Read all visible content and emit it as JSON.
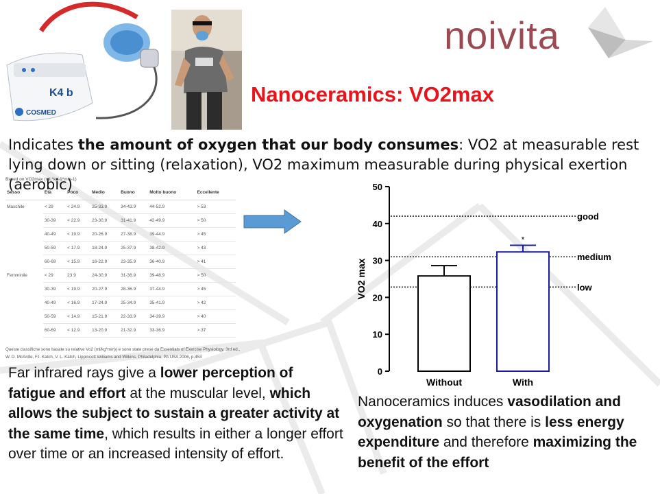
{
  "logo": {
    "text": "noivita"
  },
  "device_photo": {
    "brand_label": "K4 b",
    "maker_label": "COSMED"
  },
  "title": "Nanoceramics: VO2max",
  "intro": {
    "p1": "Indicates ",
    "b1": "the amount of oxygen that our body consumes",
    "p2": ": VO2 at measurable rest lying down or sitting (relaxation), VO2 maximum measurable during physical exertion (aerobic)"
  },
  "vo2_table": {
    "caption": "Based on VO2max (mL*kg-1*min-1)",
    "headers": [
      "Sesso",
      "Età",
      "Poco",
      "Medio",
      "Buono",
      "Molto buono",
      "Eccellente"
    ],
    "rows": [
      [
        "Maschile",
        "< 29",
        "< 24.9",
        "25-33.9",
        "34-43.9",
        "44-52.9",
        "> 53"
      ],
      [
        "",
        "30-39",
        "< 22.9",
        "23-30.9",
        "31-41.9",
        "42-49.9",
        "> 50"
      ],
      [
        "",
        "40-49",
        "< 19.9",
        "20-26.9",
        "27-38.9",
        "39-44.9",
        "> 45"
      ],
      [
        "",
        "50-59",
        "< 17.9",
        "18-24.9",
        "25-37.9",
        "38-42.9",
        "> 43"
      ],
      [
        "",
        "60-69",
        "< 15.9",
        "16-22.9",
        "23-35.9",
        "36-40.9",
        "> 41"
      ],
      [
        "Femminile",
        "< 29",
        "23.9",
        "24-30.9",
        "31-38.9",
        "39-48.9",
        "> 50"
      ],
      [
        "",
        "30-39",
        "< 19.9",
        "20-27.9",
        "28-36.9",
        "37-44.9",
        "> 45"
      ],
      [
        "",
        "40-49",
        "< 16.9",
        "17-24.9",
        "25-34.9",
        "35-41.9",
        "> 42"
      ],
      [
        "",
        "50-59",
        "< 14.9",
        "15-21.9",
        "22-33.9",
        "34-39.9",
        "> 40"
      ],
      [
        "",
        "60-69",
        "< 12.9",
        "13-20.9",
        "21-32.9",
        "33-36.9",
        "> 37"
      ]
    ],
    "note_line1": "Queste classifiche sono basate su relative Vo2 (ml/kg*min)) e sono state prese da Essentials of Exercise Physiology, 3rd ed.,",
    "note_line2": "W. D. McArdle, F.I. Katch, V. L. Katch, Lippincott Williams and Wilkins, Philadelphia, PA USA 2006, p.453"
  },
  "chart_data": {
    "type": "bar",
    "categories": [
      "Without",
      "With"
    ],
    "values": [
      25.8,
      32.3
    ],
    "errors": [
      2.8,
      1.8
    ],
    "significance": [
      "",
      "*"
    ],
    "ylabel": "VO2 max",
    "ylim": [
      0,
      50
    ],
    "yticks": [
      "0",
      "10",
      "20",
      "30",
      "40",
      "50"
    ],
    "bar_colors": [
      "#000000",
      "#1a1aa6"
    ],
    "reference_lines": [
      {
        "label": "good",
        "value": 42
      },
      {
        "label": "medium",
        "value": 31
      },
      {
        "label": "low",
        "value": 22.8
      }
    ]
  },
  "left_text": {
    "p1": "Far infrared rays give a ",
    "b1": "lower perception of fatigue and effort",
    "p2": " at the muscular level, ",
    "b2": "which allows the subject to sustain a greater activity at the same time",
    "p3": ", which results in either a longer effort over time or an increased intensity of effort."
  },
  "right_text": {
    "p1": "Nanoceramics induces ",
    "b1": "vasodilation and oxygenation",
    "p2": " so that there is ",
    "b2": "less energy expenditure",
    "p3": " and therefore ",
    "b3": "maximizing the benefit of the effort"
  }
}
